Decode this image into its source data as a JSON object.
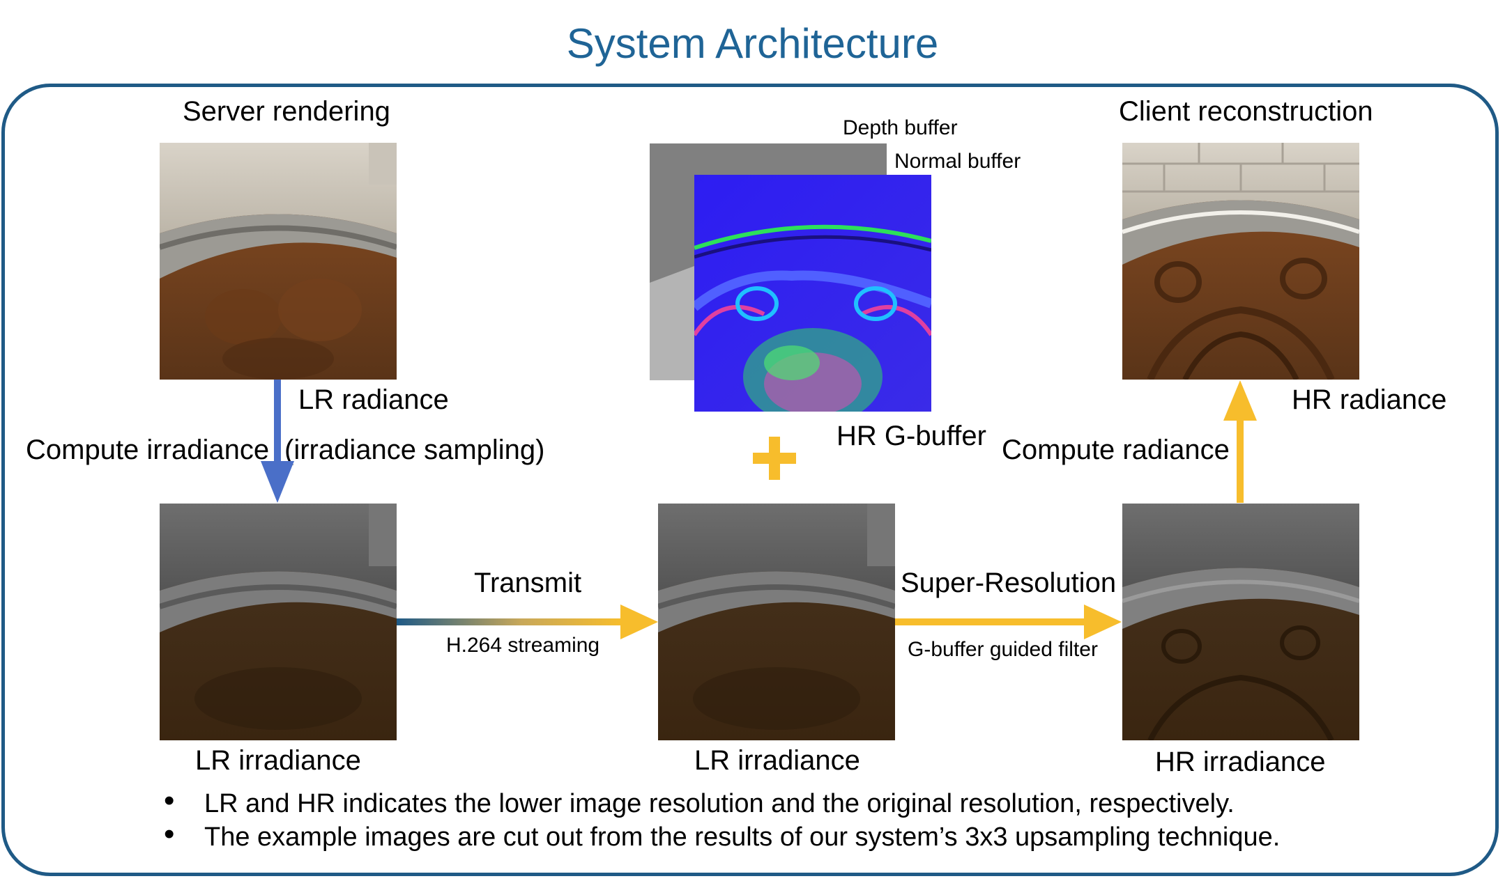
{
  "title": "System Architecture",
  "server": {
    "heading": "Server rendering",
    "lr_radiance": "LR radiance",
    "compute_irradiance": "Compute irradiance",
    "irradiance_sampling": "(irradiance sampling)",
    "lr_irradiance": "LR irradiance"
  },
  "transmit": {
    "label": "Transmit",
    "sub": "H.264 streaming"
  },
  "middle": {
    "depth_buffer": "Depth buffer",
    "normal_buffer": "Normal buffer",
    "hr_gbuffer": "HR G-buffer",
    "lr_irradiance": "LR irradiance"
  },
  "super_resolution": {
    "label": "Super-Resolution",
    "sub": "G-buffer guided filter"
  },
  "client": {
    "heading": "Client reconstruction",
    "hr_radiance": "HR radiance",
    "compute_radiance": "Compute radiance",
    "hr_irradiance": "HR irradiance"
  },
  "notes": [
    "LR and HR indicates the lower image resolution and the original resolution, respectively.",
    "The example images are cut out from the results of our system’s 3x3 upsampling technique."
  ],
  "colors": {
    "title": "#1f6496",
    "frame": "#1f5a86",
    "blue_arrow": "#4a6fc8",
    "yellow_arrow": "#f7bd2c"
  }
}
